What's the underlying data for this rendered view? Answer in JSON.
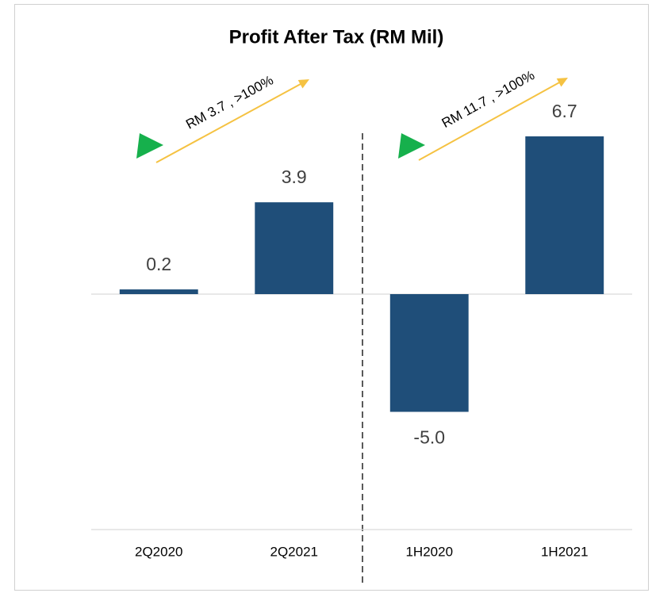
{
  "chart_data": {
    "type": "bar",
    "title": "Profit After Tax (RM Mil)",
    "categories": [
      "2Q2020",
      "2Q2021",
      "1H2020",
      "1H2021"
    ],
    "values": [
      0.2,
      3.9,
      -5.0,
      6.7
    ],
    "value_labels": [
      "0.2",
      "3.9",
      "-5.0",
      "6.7"
    ],
    "color": "#1f4e79",
    "ylim": [
      -10,
      8
    ],
    "annotations": [
      "RM 3.7 , >100%",
      "RM 11.7 , >100%"
    ]
  }
}
